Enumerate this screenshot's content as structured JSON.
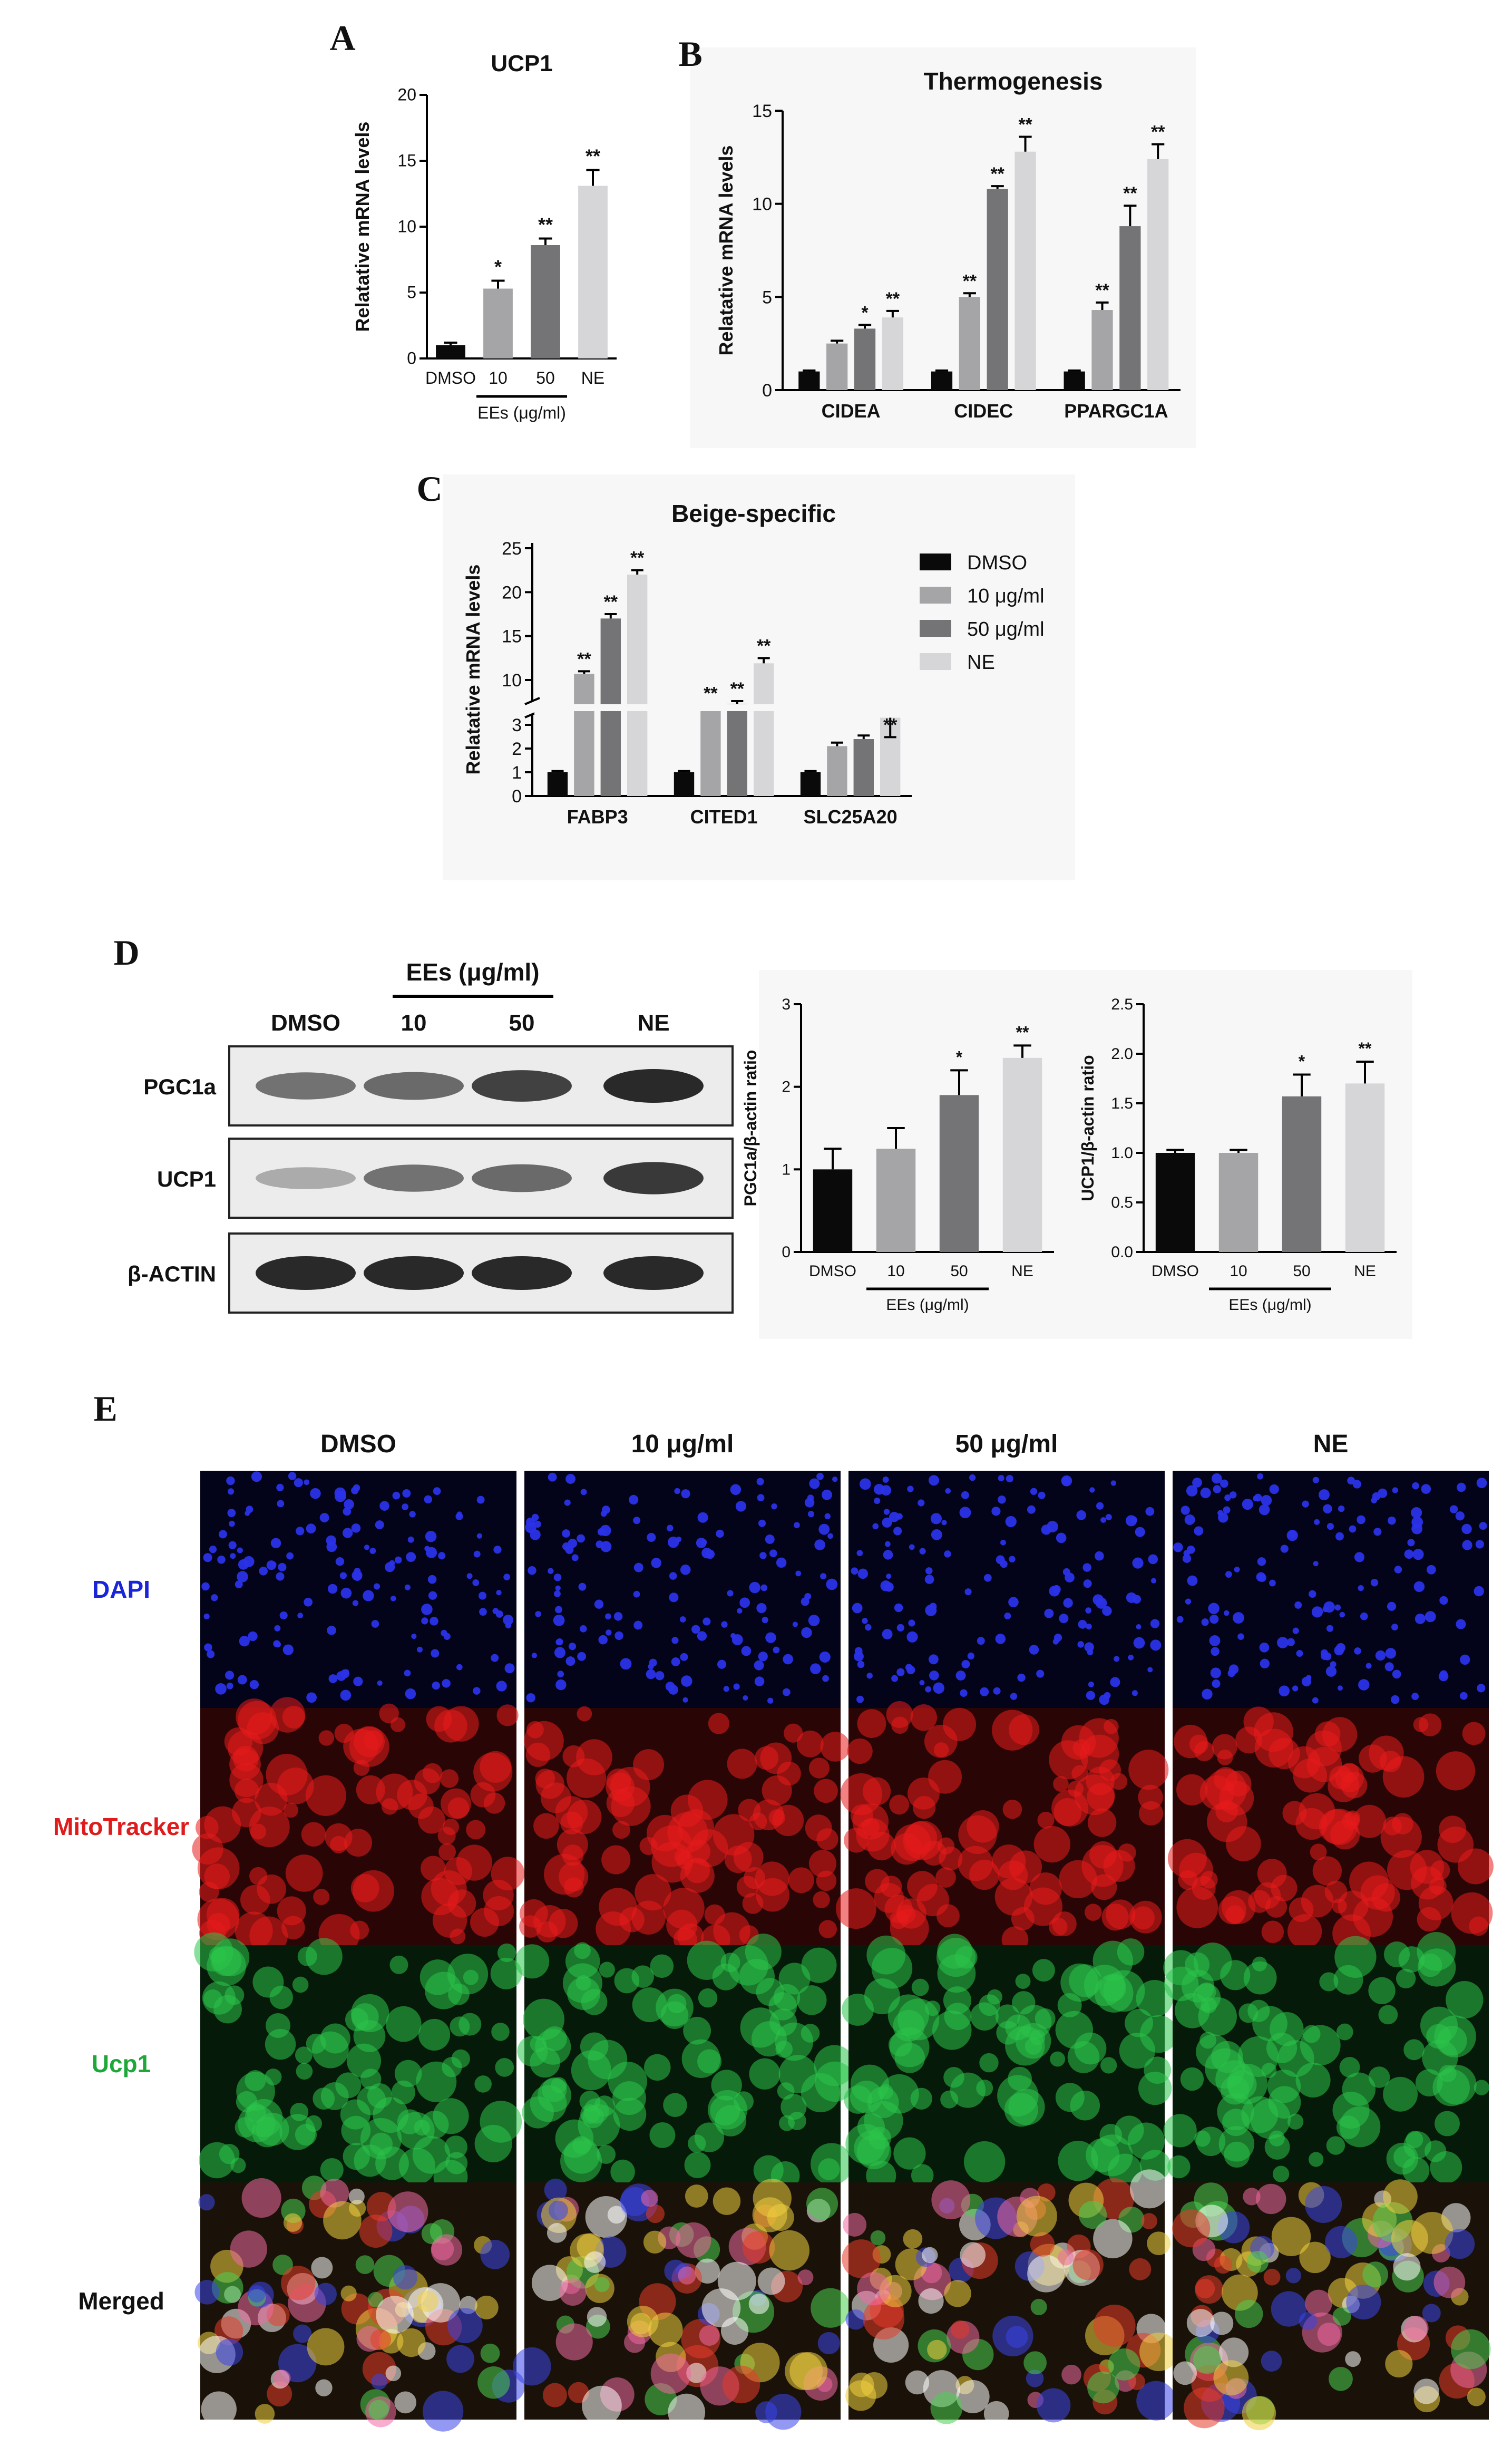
{
  "colors": {
    "dmso": "#0a0a0a",
    "c10": "#a5a5a8",
    "c50": "#747476",
    "ne": "#d6d6d8",
    "dapi": "#2b36d8",
    "mito": "#e02020",
    "ucp1": "#2fb84a"
  },
  "panel_letters": [
    "A",
    "B",
    "C",
    "D",
    "E"
  ],
  "chart_data": [
    {
      "id": "A",
      "type": "bar",
      "title": "UCP1",
      "ylabel": "Relatative mRNA levels",
      "categories": [
        "DMSO",
        "10",
        "50",
        "NE"
      ],
      "values": [
        1.0,
        5.3,
        8.6,
        13.1
      ],
      "errors": [
        0.2,
        0.6,
        0.5,
        1.2
      ],
      "sig": [
        "",
        "*",
        "**",
        "**"
      ],
      "ylim": [
        0,
        20
      ],
      "yticks": [
        0,
        5,
        10,
        15,
        20
      ],
      "group_label": "EEs (μg/ml)"
    },
    {
      "id": "B",
      "type": "bar",
      "title": "Thermogenesis",
      "ylabel": "Relatative mRNA levels",
      "categories": [
        "CIDEA",
        "CIDEC",
        "PPARGC1A"
      ],
      "ylim": [
        0,
        15
      ],
      "yticks": [
        0,
        5,
        10,
        15
      ],
      "series": [
        {
          "name": "DMSO",
          "values": [
            1.0,
            1.0,
            1.0
          ],
          "errors": [
            0.05,
            0.05,
            0.05
          ],
          "sig": [
            "",
            "",
            ""
          ]
        },
        {
          "name": "10 μg/ml",
          "values": [
            2.5,
            5.0,
            4.3
          ],
          "errors": [
            0.15,
            0.2,
            0.4
          ],
          "sig": [
            "",
            "**",
            "**"
          ]
        },
        {
          "name": "50 μg/ml",
          "values": [
            3.3,
            10.8,
            8.8
          ],
          "errors": [
            0.2,
            0.15,
            1.1
          ],
          "sig": [
            "*",
            "**",
            "**"
          ]
        },
        {
          "name": "NE",
          "values": [
            3.9,
            12.8,
            12.4
          ],
          "errors": [
            0.35,
            0.8,
            0.8
          ],
          "sig": [
            "**",
            "**",
            "**"
          ]
        }
      ]
    },
    {
      "id": "C",
      "type": "bar",
      "title": "Beige-specific",
      "ylabel": "Relatative mRNA levels",
      "categories": [
        "FABP3",
        "CITED1",
        "SLC25A20"
      ],
      "yticks_lower": [
        0,
        1,
        2,
        3
      ],
      "yticks_upper": [
        10,
        15,
        20,
        25
      ],
      "legend": [
        "DMSO",
        "10 μg/ml",
        "50 μg/ml",
        "NE"
      ],
      "series": [
        {
          "name": "DMSO",
          "values": [
            1.0,
            1.0,
            1.0
          ],
          "errors": [
            0.05,
            0.05,
            0.05
          ],
          "sig": [
            "",
            "",
            ""
          ]
        },
        {
          "name": "10 μg/ml",
          "values": [
            10.7,
            6.5,
            2.1
          ],
          "errors": [
            0.3,
            0.6,
            0.15
          ],
          "sig": [
            "**",
            "**",
            ""
          ]
        },
        {
          "name": "50 μg/ml",
          "values": [
            17.0,
            7.3,
            2.4
          ],
          "errors": [
            0.5,
            0.3,
            0.15
          ],
          "sig": [
            "**",
            "**",
            ""
          ]
        },
        {
          "name": "NE",
          "values": [
            22.0,
            11.9,
            3.3
          ],
          "errors": [
            0.5,
            0.6,
            0.2
          ],
          "sig": [
            "**",
            "**",
            "**"
          ]
        }
      ]
    },
    {
      "id": "D1",
      "type": "bar",
      "ylabel": "PGC1a/β-actin ratio",
      "categories": [
        "DMSO",
        "10",
        "50",
        "NE"
      ],
      "values": [
        1.0,
        1.25,
        1.9,
        2.35
      ],
      "errors": [
        0.25,
        0.25,
        0.3,
        0.15
      ],
      "sig": [
        "",
        "",
        "*",
        "**"
      ],
      "ylim": [
        0,
        3
      ],
      "yticks": [
        0,
        1,
        2,
        3
      ],
      "group_label": "EEs (μg/ml)"
    },
    {
      "id": "D2",
      "type": "bar",
      "ylabel": "UCP1/β-actin ratio",
      "categories": [
        "DMSO",
        "10",
        "50",
        "NE"
      ],
      "values": [
        1.0,
        1.0,
        1.57,
        1.7
      ],
      "errors": [
        0.03,
        0.03,
        0.22,
        0.22
      ],
      "sig": [
        "",
        "",
        "*",
        "**"
      ],
      "ylim": [
        0,
        2.5
      ],
      "yticks": [
        "0.0",
        "0.5",
        "1.0",
        "1.5",
        "2.0",
        "2.5"
      ],
      "group_label": "EEs (μg/ml)"
    }
  ],
  "western": {
    "header_group": "EEs (μg/ml)",
    "lanes": [
      "DMSO",
      "10",
      "50",
      "NE"
    ],
    "rows": [
      {
        "label": "PGC1a",
        "intensity": [
          0.55,
          0.6,
          0.85,
          1.0
        ]
      },
      {
        "label": "UCP1",
        "intensity": [
          0.2,
          0.55,
          0.6,
          0.9
        ]
      },
      {
        "label": "β-ACTIN",
        "intensity": [
          1.0,
          1.0,
          1.0,
          1.0
        ]
      }
    ]
  },
  "microscopy": {
    "columns": [
      "DMSO",
      "10 μg/ml",
      "50 μg/ml",
      "NE"
    ],
    "rows": [
      {
        "label": "DAPI",
        "color": "#1a24d8"
      },
      {
        "label": "MitoTracker",
        "color": "#e01b1b"
      },
      {
        "label": "Ucp1",
        "color": "#1fa83a"
      },
      {
        "label": "Merged",
        "color": "#111111"
      }
    ]
  }
}
